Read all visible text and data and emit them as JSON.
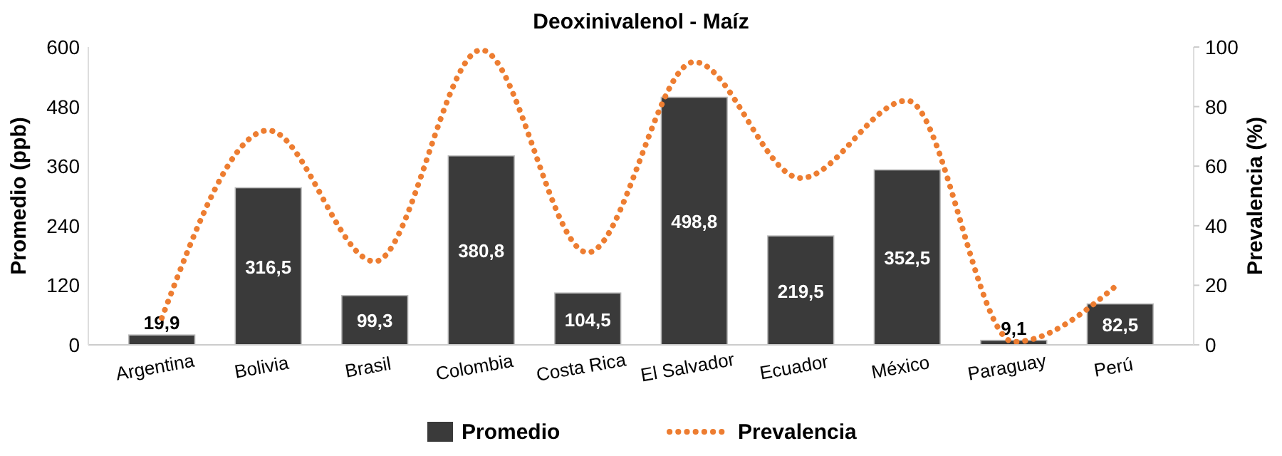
{
  "chart_data": {
    "type": "bar",
    "title": "Deoxinivalenol - Maíz",
    "ylabel": "Promedio (ppb)",
    "y2label": "Prevalencia (%)",
    "categories": [
      "Argentina",
      "Bolivia",
      "Brasil",
      "Colombia",
      "Costa Rica",
      "El Salvador",
      "Ecuador",
      "México",
      "Paraguay",
      "Perú"
    ],
    "series": [
      {
        "name": "Promedio",
        "color": "#3a3a3a",
        "values": [
          19.9,
          316.5,
          99.3,
          380.8,
          104.5,
          498.8,
          219.5,
          352.5,
          9.1,
          82.5
        ],
        "value_labels": [
          "19,9",
          "316,5",
          "99,3",
          "380,8",
          "104,5",
          "498,8",
          "219,5",
          "352,5",
          "9,1",
          "82,5"
        ]
      },
      {
        "name": "Prevalencia",
        "type": "line",
        "axis": "y2",
        "color": "#ed7d31",
        "line_style": "dotted",
        "values": [
          9,
          72,
          28,
          99,
          31,
          95,
          56,
          82,
          1,
          21
        ]
      }
    ],
    "ylim": [
      0,
      600
    ],
    "yticks": [
      0,
      120,
      240,
      360,
      480,
      600
    ],
    "y2lim": [
      0,
      100
    ],
    "y2ticks": [
      0,
      20,
      40,
      60,
      80,
      100
    ],
    "grid": false,
    "legend": "bottom"
  }
}
